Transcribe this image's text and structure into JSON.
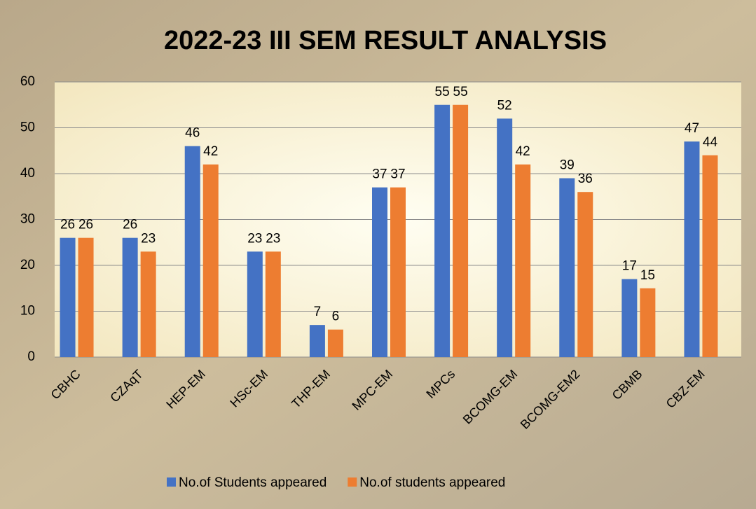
{
  "chart_data": {
    "type": "bar",
    "title": "2022-23 III SEM RESULT ANALYSIS",
    "categories": [
      "CBHC",
      "CZAqT",
      "HEP-EM",
      "HSc-EM",
      "THP-EM",
      "MPC-EM",
      "MPCs",
      "BCOMG-EM",
      "BCOMG-EM2",
      "CBMB",
      "CBZ-EM"
    ],
    "series": [
      {
        "name": "No.of Students appeared",
        "color": "#4472c4",
        "values": [
          26,
          26,
          46,
          23,
          7,
          37,
          55,
          52,
          39,
          17,
          47
        ]
      },
      {
        "name": "No.of students appeared",
        "color": "#ed7d31",
        "values": [
          26,
          23,
          42,
          23,
          6,
          37,
          55,
          42,
          36,
          15,
          44
        ]
      }
    ],
    "ylim": [
      0,
      60
    ],
    "yticks": [
      0,
      10,
      20,
      30,
      40,
      50,
      60
    ],
    "grid": true,
    "legend": "bottom"
  }
}
